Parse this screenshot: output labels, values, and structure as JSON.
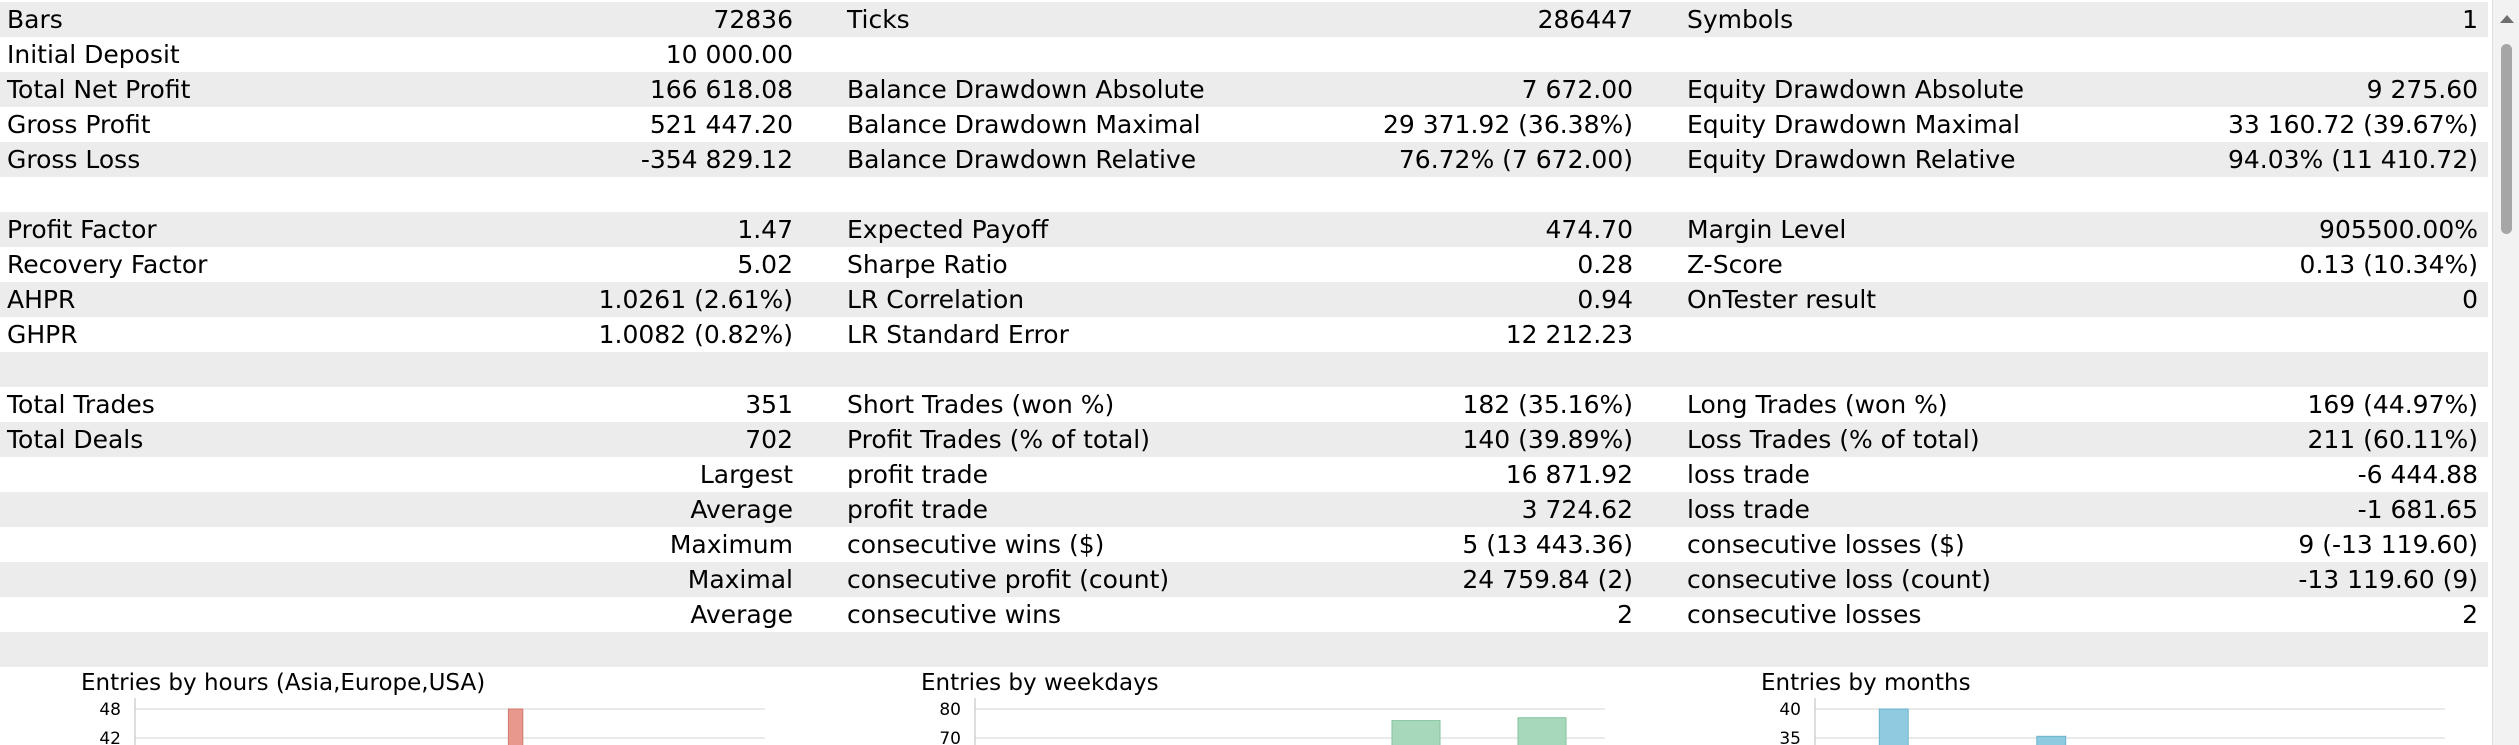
{
  "rows": [
    {
      "shaded": true,
      "cells": {
        "lbl1": "Bars",
        "val1": "72836",
        "lbl2": "Ticks",
        "val2": "286447",
        "lbl3": "Symbols",
        "val3": "1"
      }
    },
    {
      "shaded": false,
      "cells": {
        "lbl1": "Initial Deposit",
        "val1": "10 000.00"
      }
    },
    {
      "shaded": true,
      "cells": {
        "lbl1": "Total Net Profit",
        "val1": "166 618.08",
        "lbl2": "Balance Drawdown Absolute",
        "val2": "7 672.00",
        "lbl3": "Equity Drawdown Absolute",
        "val3": "9 275.60"
      }
    },
    {
      "shaded": false,
      "cells": {
        "lbl1": "Gross Profit",
        "val1": "521 447.20",
        "lbl2": "Balance Drawdown Maximal",
        "val2": "29 371.92 (36.38%)",
        "lbl3": "Equity Drawdown Maximal",
        "val3": "33 160.72 (39.67%)"
      }
    },
    {
      "shaded": true,
      "cells": {
        "lbl1": "Gross Loss",
        "val1": "-354 829.12",
        "lbl2": "Balance Drawdown Relative",
        "val2": "76.72% (7 672.00)",
        "lbl3": "Equity Drawdown Relative",
        "val3": "94.03% (11 410.72)"
      }
    },
    {
      "shaded": false,
      "cells": {}
    },
    {
      "shaded": true,
      "cells": {
        "lbl1": "Profit Factor",
        "val1": "1.47",
        "lbl2": "Expected Payoff",
        "val2": "474.70",
        "lbl3": "Margin Level",
        "val3": "905500.00%"
      }
    },
    {
      "shaded": false,
      "cells": {
        "lbl1": "Recovery Factor",
        "val1": "5.02",
        "lbl2": "Sharpe Ratio",
        "val2": "0.28",
        "lbl3": "Z-Score",
        "val3": "0.13 (10.34%)"
      }
    },
    {
      "shaded": true,
      "cells": {
        "lbl1": "AHPR",
        "val1": "1.0261 (2.61%)",
        "lbl2": "LR Correlation",
        "val2": "0.94",
        "lbl3": "OnTester result",
        "val3": "0"
      }
    },
    {
      "shaded": false,
      "cells": {
        "lbl1": "GHPR",
        "val1": "1.0082 (0.82%)",
        "lbl2": "LR Standard Error",
        "val2": "12 212.23"
      }
    },
    {
      "shaded": true,
      "cells": {}
    },
    {
      "shaded": false,
      "cells": {
        "lbl1": "Total Trades",
        "val1": "351",
        "lbl2": "Short Trades (won %)",
        "val2": "182 (35.16%)",
        "lbl3": "Long Trades (won %)",
        "val3": "169 (44.97%)"
      }
    },
    {
      "shaded": true,
      "cells": {
        "lbl1": "Total Deals",
        "val1": "702",
        "lbl2": "Profit Trades (% of total)",
        "val2": "140 (39.89%)",
        "lbl3": "Loss Trades (% of total)",
        "val3": "211 (60.11%)"
      }
    },
    {
      "shaded": false,
      "cells": {
        "cap1": "Largest",
        "lbl2": "profit trade",
        "val2": "16 871.92",
        "lbl3": "loss trade",
        "val3": "-6 444.88"
      }
    },
    {
      "shaded": true,
      "cells": {
        "cap1": "Average",
        "lbl2": "profit trade",
        "val2": "3 724.62",
        "lbl3": "loss trade",
        "val3": "-1 681.65"
      }
    },
    {
      "shaded": false,
      "cells": {
        "cap1": "Maximum",
        "lbl2": "consecutive wins ($)",
        "val2": "5 (13 443.36)",
        "lbl3": "consecutive losses ($)",
        "val3": "9 (-13 119.60)"
      }
    },
    {
      "shaded": true,
      "cells": {
        "cap1": "Maximal",
        "lbl2": "consecutive profit (count)",
        "val2": "24 759.84 (2)",
        "lbl3": "consecutive loss (count)",
        "val3": "-13 119.60 (9)"
      }
    },
    {
      "shaded": false,
      "cells": {
        "cap1": "Average",
        "lbl2": "consecutive wins",
        "val2": "2",
        "lbl3": "consecutive losses",
        "val3": "2"
      }
    },
    {
      "shaded": true,
      "cells": {}
    }
  ],
  "chart_data": [
    {
      "type": "bar",
      "title": "Entries by hours (Asia,Europe,USA)",
      "y_ticks": [
        "48",
        "42"
      ],
      "visible_y_range": [
        42,
        48
      ],
      "bars": [
        {
          "category_index": 14,
          "category_count": 24,
          "value": 48,
          "color": "#e8998d",
          "stroke": "#d07a6e"
        }
      ]
    },
    {
      "type": "bar",
      "title": "Entries by weekdays",
      "y_ticks": [
        "80",
        "70"
      ],
      "visible_y_range": [
        70,
        80
      ],
      "bars": [
        {
          "category_index": 3,
          "category_count": 5,
          "value": 76,
          "color": "#a8d8bc",
          "stroke": "#84c29e"
        },
        {
          "category_index": 4,
          "category_count": 5,
          "value": 77,
          "color": "#a8d8bc",
          "stroke": "#84c29e"
        }
      ]
    },
    {
      "type": "bar",
      "title": "Entries by months",
      "y_ticks": [
        "40",
        "35"
      ],
      "visible_y_range": [
        35,
        40
      ],
      "bars": [
        {
          "category_index": 1,
          "category_count": 12,
          "value": 40,
          "color": "#8fcbe0",
          "stroke": "#6cb2cc"
        },
        {
          "category_index": 4,
          "category_count": 12,
          "value": 35.3,
          "color": "#8fcbe0",
          "stroke": "#6cb2cc"
        }
      ]
    }
  ]
}
